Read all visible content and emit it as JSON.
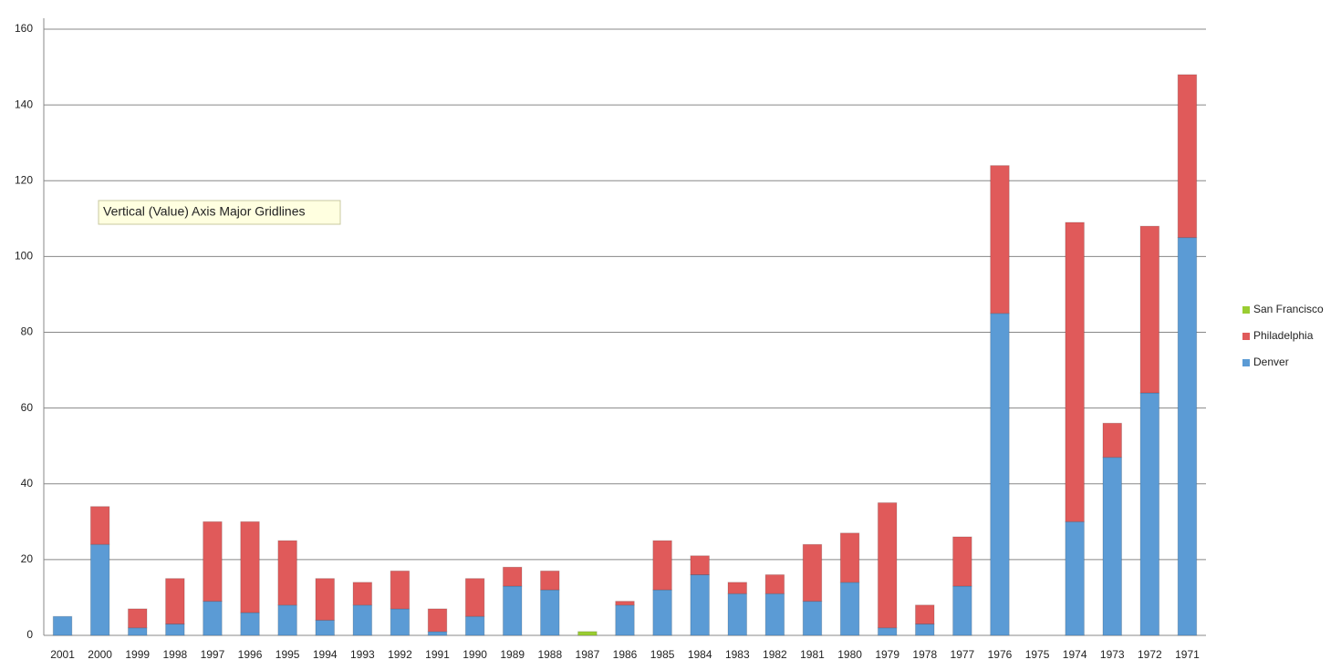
{
  "chart_data": {
    "type": "stacked_bar",
    "tooltip": "Vertical (Value) Axis Major Gridlines",
    "categories": [
      "2001",
      "2000",
      "1999",
      "1998",
      "1997",
      "1996",
      "1995",
      "1994",
      "1993",
      "1992",
      "1991",
      "1990",
      "1989",
      "1988",
      "1987",
      "1986",
      "1985",
      "1984",
      "1983",
      "1982",
      "1981",
      "1980",
      "1979",
      "1978",
      "1977",
      "1976",
      "1975",
      "1974",
      "1973",
      "1972",
      "1971"
    ],
    "series": [
      {
        "name": "Denver",
        "color": "#5b9bd5",
        "values": [
          5,
          24,
          2,
          3,
          9,
          6,
          8,
          4,
          8,
          7,
          1,
          5,
          13,
          12,
          0,
          8,
          12,
          16,
          11,
          11,
          9,
          14,
          2,
          3,
          13,
          85,
          0,
          30,
          47,
          64,
          105
        ]
      },
      {
        "name": "Philadelphia",
        "color": "#e05a5a",
        "values": [
          0,
          10,
          5,
          12,
          21,
          24,
          17,
          11,
          6,
          10,
          6,
          10,
          5,
          5,
          0,
          1,
          13,
          5,
          3,
          5,
          15,
          13,
          33,
          5,
          13,
          39,
          0,
          79,
          9,
          44,
          43
        ]
      },
      {
        "name": "San Francisco",
        "color": "#9acd32",
        "values": [
          0,
          0,
          0,
          0,
          0,
          0,
          0,
          0,
          0,
          0,
          0,
          0,
          0,
          0,
          1,
          0,
          0,
          0,
          0,
          0,
          0,
          0,
          0,
          0,
          0,
          0,
          0,
          0,
          0,
          0,
          0
        ]
      }
    ],
    "ylim": [
      0,
      160
    ],
    "yticks": [
      0,
      20,
      40,
      60,
      80,
      100,
      120,
      140,
      160
    ],
    "grid": true,
    "legend": "right"
  }
}
